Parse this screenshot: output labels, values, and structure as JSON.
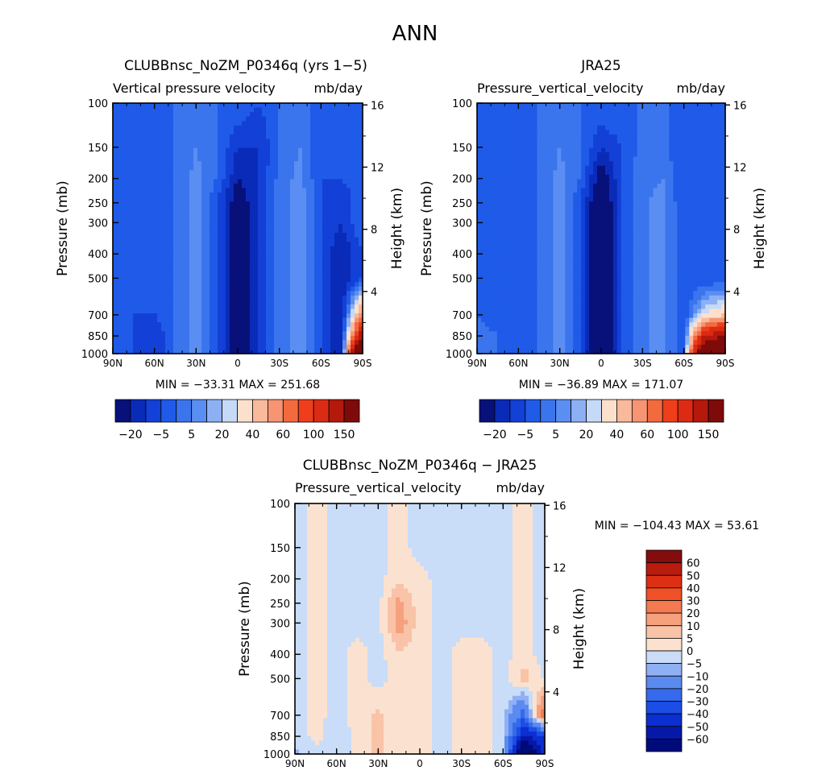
{
  "figure": {
    "title": "ANN"
  },
  "chart_data": [
    {
      "type": "heatmap",
      "id": "model",
      "title": "CLUBBnsc_NoZM_P0346q (yrs 1−5)",
      "subtitle_left": "Vertical pressure velocity",
      "subtitle_right": "mb/day",
      "xlabel": "",
      "ylabel": "Pressure (mb)",
      "ylabel_right": "Height (km)",
      "x_ticks": [
        "90N",
        "60N",
        "30N",
        "0",
        "30S",
        "60S",
        "90S"
      ],
      "x_range": [
        90,
        -90
      ],
      "y_ticks": [
        100,
        150,
        200,
        250,
        300,
        400,
        500,
        700,
        850,
        1000
      ],
      "y_range": [
        100,
        1000
      ],
      "y_scale": "log",
      "height_ticks": [
        4,
        8,
        12,
        16
      ],
      "stats": "MIN = −33.31   MAX = 251.68",
      "min": -33.31,
      "max": 251.68,
      "colorbar_labels": [
        "−20",
        "−5",
        "5",
        "20",
        "40",
        "60",
        "100",
        "150"
      ],
      "levels": [
        -25,
        -20,
        -15,
        -10,
        -5,
        0,
        5,
        10,
        20,
        30,
        40,
        50,
        60,
        80,
        100,
        150
      ],
      "latitudes": [
        90,
        75,
        60,
        45,
        30,
        15,
        0,
        -15,
        -30,
        -45,
        -60,
        -75,
        -90
      ],
      "pressures": [
        100,
        150,
        200,
        250,
        300,
        400,
        500,
        700,
        850,
        1000
      ],
      "values": [
        [
          -10,
          -10,
          -10,
          -10,
          -10,
          -10,
          -10,
          -15,
          -10,
          -10,
          -10,
          -10,
          -10
        ],
        [
          -15,
          -15,
          -15,
          -10,
          -5,
          -10,
          -20,
          -20,
          -10,
          -5,
          -15,
          -15,
          -10
        ],
        [
          -15,
          -15,
          -15,
          -10,
          -3,
          -10,
          -25,
          -20,
          -8,
          -3,
          -15,
          -15,
          -10
        ],
        [
          -15,
          -15,
          -15,
          -10,
          -2,
          -15,
          -30,
          -20,
          -8,
          -2,
          -15,
          -20,
          -10
        ],
        [
          -15,
          -15,
          -15,
          -10,
          -2,
          -15,
          -30,
          -20,
          -8,
          -2,
          -15,
          -20,
          -10
        ],
        [
          -15,
          -15,
          -15,
          -10,
          -2,
          -15,
          -30,
          -20,
          -8,
          -2,
          -15,
          -25,
          -15
        ],
        [
          -15,
          -15,
          -15,
          -10,
          -2,
          -15,
          -30,
          -20,
          -8,
          -2,
          -15,
          -25,
          -15
        ],
        [
          -15,
          -15,
          -15,
          -10,
          -2,
          -15,
          -30,
          -20,
          -8,
          -2,
          -15,
          -25,
          40
        ],
        [
          -15,
          -15,
          -20,
          -10,
          -2,
          -15,
          -30,
          -20,
          -8,
          -2,
          -15,
          -25,
          100
        ],
        [
          -15,
          -15,
          -20,
          -10,
          -2,
          -15,
          -30,
          -20,
          -8,
          -2,
          -15,
          -25,
          200
        ]
      ],
      "legend": "bottom"
    },
    {
      "type": "heatmap",
      "id": "obs",
      "title": "JRA25",
      "subtitle_left": "Pressure_vertical_velocity",
      "subtitle_right": "mb/day",
      "xlabel": "",
      "ylabel": "Pressure (mb)",
      "ylabel_right": "Height (km)",
      "x_ticks": [
        "90N",
        "60N",
        "30N",
        "0",
        "30S",
        "60S",
        "90S"
      ],
      "x_range": [
        90,
        -90
      ],
      "y_ticks": [
        100,
        150,
        200,
        250,
        300,
        400,
        500,
        700,
        850,
        1000
      ],
      "y_range": [
        100,
        1000
      ],
      "y_scale": "log",
      "height_ticks": [
        4,
        8,
        12,
        16
      ],
      "stats": "MIN = −36.89   MAX = 171.07",
      "min": -36.89,
      "max": 171.07,
      "colorbar_labels": [
        "−20",
        "−5",
        "5",
        "20",
        "40",
        "60",
        "100",
        "150"
      ],
      "levels": [
        -25,
        -20,
        -15,
        -10,
        -5,
        0,
        5,
        10,
        20,
        30,
        40,
        50,
        60,
        80,
        100,
        150
      ],
      "latitudes": [
        90,
        75,
        60,
        45,
        30,
        15,
        0,
        -15,
        -30,
        -45,
        -60,
        -75,
        -90
      ],
      "pressures": [
        100,
        150,
        200,
        250,
        300,
        400,
        500,
        700,
        850,
        1000
      ],
      "values": [
        [
          -10,
          -10,
          -10,
          -10,
          -10,
          -10,
          -10,
          -10,
          -10,
          -10,
          -10,
          -10,
          -10
        ],
        [
          -10,
          -15,
          -15,
          -10,
          -5,
          -10,
          -20,
          -15,
          -8,
          -8,
          -15,
          -15,
          -15
        ],
        [
          -10,
          -15,
          -15,
          -10,
          -3,
          -10,
          -30,
          -15,
          -6,
          -5,
          -15,
          -15,
          -15
        ],
        [
          -10,
          -15,
          -15,
          -10,
          -2,
          -15,
          -35,
          -15,
          -6,
          -3,
          -15,
          -15,
          -15
        ],
        [
          -10,
          -15,
          -15,
          -10,
          -2,
          -15,
          -35,
          -15,
          -6,
          -3,
          -15,
          -15,
          -15
        ],
        [
          -10,
          -15,
          -15,
          -10,
          -2,
          -15,
          -35,
          -15,
          -6,
          -3,
          -15,
          -15,
          -15
        ],
        [
          -10,
          -15,
          -15,
          -10,
          -2,
          -15,
          -35,
          -15,
          -6,
          -3,
          -15,
          -15,
          -15
        ],
        [
          -10,
          -15,
          -15,
          -10,
          -2,
          -15,
          -35,
          -15,
          -6,
          -3,
          -15,
          10,
          20
        ],
        [
          -5,
          -10,
          -15,
          -10,
          -2,
          -15,
          -35,
          -15,
          -6,
          -3,
          -15,
          80,
          100
        ],
        [
          -5,
          -10,
          -15,
          -10,
          -2,
          -15,
          -35,
          -15,
          -6,
          -3,
          -15,
          150,
          150
        ]
      ],
      "legend": "bottom"
    },
    {
      "type": "heatmap",
      "id": "diff",
      "title": "CLUBBnsc_NoZM_P0346q − JRA25",
      "subtitle_left": "Pressure_vertical_velocity",
      "subtitle_right": "mb/day",
      "xlabel": "",
      "ylabel": "Pressure (mb)",
      "ylabel_right": "Height (km)",
      "x_ticks": [
        "90N",
        "60N",
        "30N",
        "0",
        "30S",
        "60S",
        "90S"
      ],
      "x_range": [
        90,
        -90
      ],
      "y_ticks": [
        100,
        150,
        200,
        250,
        300,
        400,
        500,
        700,
        850,
        1000
      ],
      "y_range": [
        100,
        1000
      ],
      "y_scale": "log",
      "height_ticks": [
        4,
        8,
        12,
        16
      ],
      "stats": "MIN = −104.43   MAX =  53.61",
      "min": -104.43,
      "max": 53.61,
      "colorbar_labels": [
        "60",
        "50",
        "40",
        "30",
        "20",
        "10",
        "5",
        "0",
        "−5",
        "−10",
        "−20",
        "−30",
        "−40",
        "−50",
        "−60"
      ],
      "levels": [
        -60,
        -50,
        -40,
        -30,
        -20,
        -10,
        -5,
        0,
        5,
        10,
        20,
        30,
        40,
        50,
        60
      ],
      "latitudes": [
        90,
        75,
        60,
        45,
        30,
        15,
        0,
        -15,
        -30,
        -45,
        -60,
        -75,
        -90
      ],
      "pressures": [
        100,
        150,
        200,
        250,
        300,
        400,
        500,
        700,
        850,
        1000
      ],
      "values": [
        [
          -2,
          2,
          -2,
          -2,
          -2,
          2,
          -2,
          -2,
          -2,
          -2,
          -2,
          2,
          -2
        ],
        [
          -2,
          2,
          -2,
          -2,
          -2,
          2,
          -2,
          -2,
          -2,
          -2,
          -2,
          2,
          -2
        ],
        [
          -2,
          2,
          -2,
          -2,
          -2,
          4,
          2,
          -2,
          -2,
          -2,
          -2,
          2,
          -2
        ],
        [
          -2,
          2,
          -2,
          -2,
          -2,
          12,
          2,
          -2,
          -2,
          -2,
          -2,
          2,
          -2
        ],
        [
          -2,
          2,
          -2,
          -2,
          -2,
          14,
          2,
          -2,
          -2,
          -2,
          -2,
          2,
          -2
        ],
        [
          -2,
          2,
          -2,
          2,
          -2,
          4,
          2,
          -2,
          2,
          2,
          -2,
          2,
          -2
        ],
        [
          -2,
          2,
          -2,
          2,
          -2,
          2,
          2,
          -2,
          2,
          2,
          -2,
          8,
          -2
        ],
        [
          -2,
          2,
          -2,
          2,
          6,
          2,
          2,
          -2,
          2,
          2,
          -2,
          -25,
          30
        ],
        [
          -4,
          2,
          -4,
          2,
          6,
          2,
          2,
          -2,
          2,
          2,
          -2,
          -55,
          -40
        ],
        [
          -6,
          -2,
          -4,
          2,
          6,
          2,
          2,
          -2,
          2,
          2,
          -2,
          -90,
          -40
        ]
      ],
      "legend": "right"
    }
  ]
}
